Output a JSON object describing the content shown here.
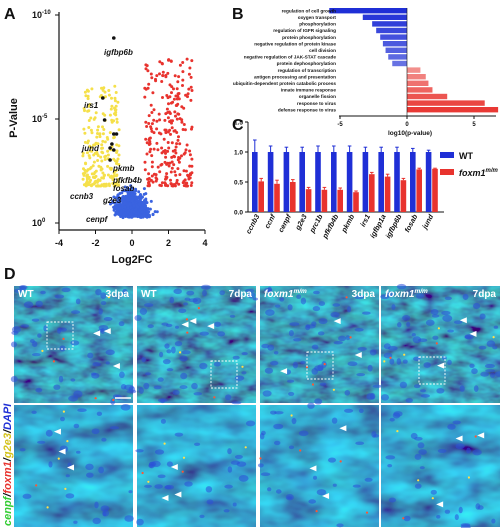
{
  "panels": {
    "A": {
      "letter": "A",
      "ylabel": "P-Value",
      "xlabel": "Log2FC",
      "yticks": [
        "10",
        "10",
        "10"
      ],
      "yexps": [
        "-10",
        "-5",
        "0"
      ],
      "xticks": [
        "-4",
        "-2",
        "0",
        "2",
        "4"
      ],
      "genes": [
        "igfbp6b",
        "irs1",
        "jund",
        "pkmb",
        "pfkfb4b",
        "fosab",
        "ccnb3",
        "g2e3",
        "cenpf"
      ]
    },
    "B": {
      "letter": "B",
      "xlabel": "log10(p-value)",
      "xticks": [
        "-5",
        "0",
        "5"
      ]
    },
    "C": {
      "letter": "C",
      "legend": [
        "WT",
        "foxm1"
      ],
      "legend_sup": "m/m",
      "yticks": [
        "0.0",
        "0.5",
        "1.0",
        "1.5"
      ]
    },
    "D": {
      "letter": "D",
      "side_label": [
        "cenpf",
        "/",
        "foxm1",
        "/",
        "g2e3",
        "/",
        "DAPI"
      ],
      "top_labels": [
        {
          "geno": "WT",
          "sup": "",
          "time": "3dpa"
        },
        {
          "geno": "WT",
          "sup": "",
          "time": "7dpa"
        },
        {
          "geno": "foxm1",
          "sup": "m/m",
          "time": "3dpa"
        },
        {
          "geno": "foxm1",
          "sup": "m/m",
          "time": "7dpa"
        }
      ]
    }
  },
  "chart_data": [
    {
      "panel": "A",
      "type": "scatter",
      "title": "",
      "xlabel": "Log2FC",
      "ylabel": "P-Value",
      "xlim": [
        -4,
        4
      ],
      "ylog": true,
      "series": [
        {
          "name": "downregulated",
          "color": "#f5e04a"
        },
        {
          "name": "upregulated",
          "color": "#e8332e"
        },
        {
          "name": "not significant",
          "color": "#3a63e0"
        }
      ],
      "labeled_points": [
        {
          "label": "igfbp6b",
          "x": -1.0,
          "neglog10p": 9.0
        },
        {
          "label": "irs1",
          "x": -1.6,
          "neglog10p": 6.0
        },
        {
          "label": "jund",
          "x": -1.5,
          "neglog10p": 4.9
        },
        {
          "label": "pkmb",
          "x": -1.0,
          "neglog10p": 4.2
        },
        {
          "label": "pfkfb4b",
          "x": -0.85,
          "neglog10p": 4.2
        },
        {
          "label": "fosab",
          "x": -1.1,
          "neglog10p": 3.7
        },
        {
          "label": "ccnb3",
          "x": -1.2,
          "neglog10p": 3.5
        },
        {
          "label": "g2e3",
          "x": -1.0,
          "neglog10p": 3.4
        },
        {
          "label": "cenpf",
          "x": -1.2,
          "neglog10p": 2.9
        }
      ]
    },
    {
      "panel": "B",
      "type": "bar",
      "orientation": "horizontal",
      "xlabel": "log10(p-value)",
      "xlim": [
        -7,
        7
      ],
      "categories": [
        "regulation of cell growth",
        "oxygen transport",
        "phosphorylation",
        "regulation of IGFR signaling",
        "protein phosphorylation",
        "negative regulation of protein kinase",
        "cell division",
        "negative regulation of JAK-STAT cascade",
        "protein dephosphorylation",
        "regulation of transcription",
        "antigen processing and presentation",
        "ubiquitin-dependent protein catabolic process",
        "innate immune response",
        "organelle fission",
        "response to virus",
        "defense response to virus"
      ],
      "values": [
        -5.8,
        -3.3,
        -2.6,
        -2.3,
        -2.0,
        -1.8,
        -1.6,
        -1.4,
        -1.1,
        1.0,
        1.4,
        1.6,
        1.9,
        3.0,
        5.8,
        6.8
      ],
      "colors": {
        "negative": "#1f2fd6",
        "positive": "#e8332e"
      }
    },
    {
      "panel": "C",
      "type": "bar",
      "categories": [
        "ccnb3",
        "ccnf",
        "cenpf",
        "g2e3",
        "prc1b",
        "pfkfb4b",
        "pkmb",
        "irs1",
        "igfbp1a",
        "igfbp6b",
        "fosab",
        "jund"
      ],
      "ylim": [
        0,
        1.5
      ],
      "series": [
        {
          "name": "WT",
          "color": "#1f2fd6",
          "values": [
            1,
            1,
            1,
            1,
            1,
            1,
            1,
            1,
            1,
            1,
            1,
            1
          ],
          "errors": [
            0.2,
            0.1,
            0.08,
            0.08,
            0.1,
            0.1,
            0.1,
            0.08,
            0.08,
            0.08,
            0.06,
            0.03
          ]
        },
        {
          "name": "foxm1",
          "color": "#e8332e",
          "values": [
            0.51,
            0.47,
            0.5,
            0.38,
            0.37,
            0.37,
            0.33,
            0.63,
            0.59,
            0.53,
            0.71,
            0.72
          ],
          "errors": [
            0.05,
            0.06,
            0.04,
            0.03,
            0.04,
            0.03,
            0.02,
            0.03,
            0.04,
            0.03,
            0.02,
            0.01
          ]
        }
      ]
    }
  ]
}
